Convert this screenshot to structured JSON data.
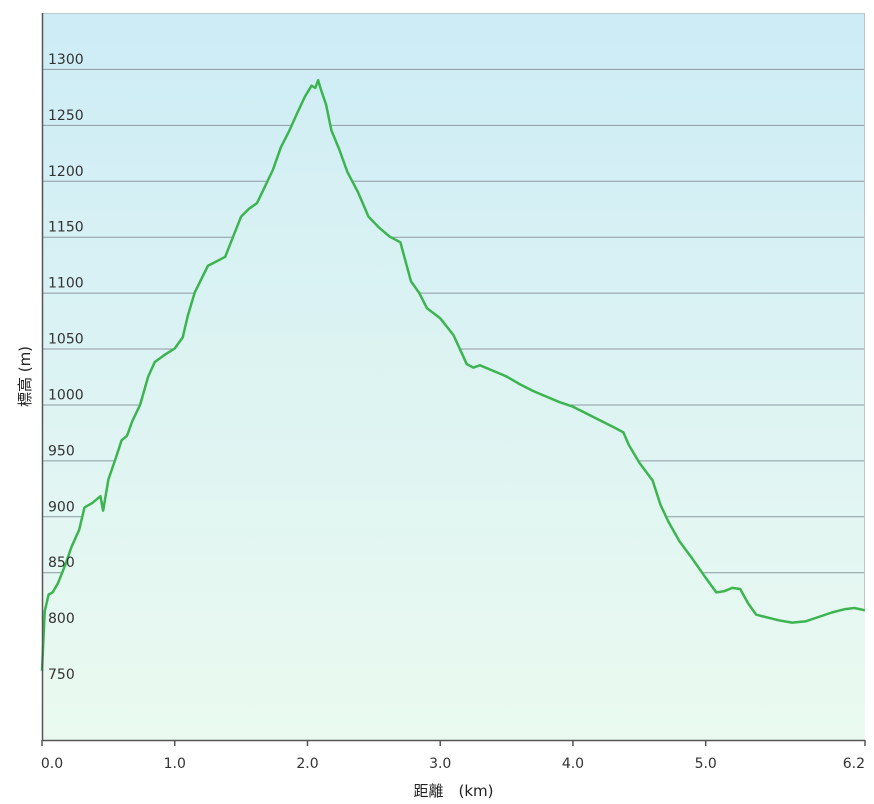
{
  "chart_data": {
    "type": "area",
    "title": "",
    "xlabel": "距離　(km)",
    "ylabel": "標高 (m)",
    "xlim": [
      0,
      6.2
    ],
    "ylim": [
      700,
      1350
    ],
    "x_ticks": [
      0.0,
      1.0,
      2.0,
      3.0,
      4.0,
      5.0,
      6.2
    ],
    "x_tick_labels": [
      "0.0",
      "1.0",
      "2.0",
      "3.0",
      "4.0",
      "5.0",
      "6.2"
    ],
    "y_ticks": [
      750,
      800,
      850,
      900,
      950,
      1000,
      1050,
      1100,
      1150,
      1200,
      1250,
      1300
    ],
    "y_tick_labels": [
      "750",
      "800",
      "850",
      "900",
      "950",
      "1000",
      "1050",
      "1100",
      "1150",
      "1200",
      "1250",
      "1300"
    ],
    "grid": true,
    "legend": "none",
    "colors": {
      "line": "#3cb550",
      "fill_top": "#d2eef4",
      "fill_bottom": "#eafaf0",
      "bg_top": "#cdecf6",
      "bg_bottom": "#ecfaf1",
      "grid": "#8c9aa0",
      "axis": "#555555"
    },
    "series": [
      {
        "name": "",
        "x": [
          0.0,
          0.02,
          0.05,
          0.08,
          0.12,
          0.18,
          0.22,
          0.28,
          0.32,
          0.38,
          0.44,
          0.46,
          0.5,
          0.55,
          0.6,
          0.64,
          0.68,
          0.74,
          0.8,
          0.85,
          0.92,
          1.0,
          1.06,
          1.1,
          1.15,
          1.2,
          1.25,
          1.3,
          1.38,
          1.44,
          1.5,
          1.56,
          1.62,
          1.68,
          1.74,
          1.8,
          1.86,
          1.92,
          1.98,
          2.03,
          2.06,
          2.08,
          2.1,
          2.14,
          2.18,
          2.24,
          2.3,
          2.38,
          2.46,
          2.54,
          2.62,
          2.7,
          2.78,
          2.84,
          2.9,
          3.0,
          3.1,
          3.2,
          3.25,
          3.3,
          3.4,
          3.5,
          3.6,
          3.7,
          3.8,
          3.9,
          4.0,
          4.1,
          4.2,
          4.3,
          4.38,
          4.42,
          4.5,
          4.6,
          4.66,
          4.72,
          4.8,
          4.9,
          5.0,
          5.08,
          5.14,
          5.2,
          5.26,
          5.32,
          5.38,
          5.45,
          5.55,
          5.65,
          5.75,
          5.85,
          5.95,
          6.05,
          6.12,
          6.2
        ],
        "y": [
          762,
          815,
          830,
          832,
          840,
          858,
          872,
          888,
          908,
          912,
          918,
          905,
          933,
          950,
          968,
          972,
          985,
          1000,
          1025,
          1038,
          1044,
          1050,
          1060,
          1080,
          1100,
          1112,
          1124,
          1127,
          1132,
          1150,
          1168,
          1175,
          1180,
          1195,
          1210,
          1230,
          1244,
          1260,
          1275,
          1285,
          1283,
          1290,
          1282,
          1268,
          1245,
          1228,
          1208,
          1190,
          1168,
          1158,
          1150,
          1145,
          1110,
          1100,
          1086,
          1077,
          1062,
          1036,
          1033,
          1035,
          1030,
          1025,
          1018,
          1012,
          1007,
          1002,
          998,
          992,
          986,
          980,
          975,
          964,
          948,
          932,
          910,
          895,
          878,
          862,
          845,
          832,
          833,
          836,
          835,
          822,
          812,
          810,
          807,
          805,
          806,
          810,
          814,
          817,
          818,
          816
        ]
      }
    ]
  }
}
